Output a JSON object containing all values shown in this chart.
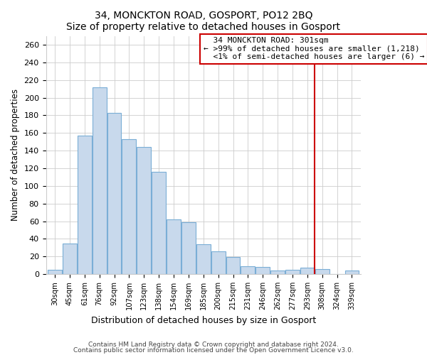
{
  "title": "34, MONCKTON ROAD, GOSPORT, PO12 2BQ",
  "subtitle": "Size of property relative to detached houses in Gosport",
  "xlabel": "Distribution of detached houses by size in Gosport",
  "ylabel": "Number of detached properties",
  "bar_labels": [
    "30sqm",
    "45sqm",
    "61sqm",
    "76sqm",
    "92sqm",
    "107sqm",
    "123sqm",
    "138sqm",
    "154sqm",
    "169sqm",
    "185sqm",
    "200sqm",
    "215sqm",
    "231sqm",
    "246sqm",
    "262sqm",
    "277sqm",
    "293sqm",
    "308sqm",
    "324sqm",
    "339sqm"
  ],
  "bar_heights": [
    5,
    35,
    157,
    212,
    183,
    153,
    144,
    116,
    62,
    59,
    34,
    26,
    19,
    9,
    8,
    4,
    5,
    7,
    6,
    0,
    4
  ],
  "bar_color": "#c8d9ec",
  "bar_edge_color": "#7aaed6",
  "vline_index": 17,
  "vline_color": "#cc0000",
  "ylim": [
    0,
    270
  ],
  "yticks": [
    0,
    20,
    40,
    60,
    80,
    100,
    120,
    140,
    160,
    180,
    200,
    220,
    240,
    260
  ],
  "annotation_title": "34 MONCKTON ROAD: 301sqm",
  "annotation_line1": "← >99% of detached houses are smaller (1,218)",
  "annotation_line2": "<1% of semi-detached houses are larger (6) →",
  "footer1": "Contains HM Land Registry data © Crown copyright and database right 2024.",
  "footer2": "Contains public sector information licensed under the Open Government Licence v3.0."
}
